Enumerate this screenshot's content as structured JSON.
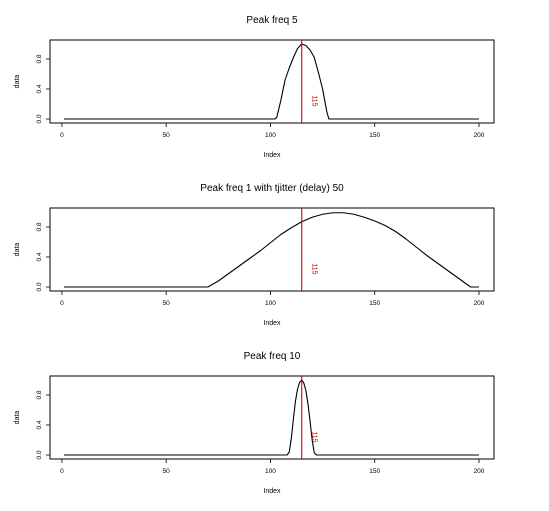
{
  "chart_data": [
    {
      "type": "line",
      "title": "Peak freq 5",
      "xlabel": "Index",
      "ylabel": "data",
      "xlim": [
        1,
        200
      ],
      "ylim": [
        0,
        1
      ],
      "xticks": [
        0,
        50,
        100,
        150,
        200
      ],
      "yticks": [
        0.0,
        0.4,
        0.8
      ],
      "ytick_labels": [
        "0.0",
        "0.4",
        "0.8"
      ],
      "grid": false,
      "series": [
        {
          "color": "#000000",
          "points": [
            [
              1,
              0
            ],
            [
              102,
              0
            ],
            [
              103,
              0.02
            ],
            [
              105,
              0.25
            ],
            [
              107,
              0.52
            ],
            [
              109,
              0.68
            ],
            [
              111,
              0.82
            ],
            [
              113,
              0.94
            ],
            [
              115,
              1.0
            ],
            [
              117,
              0.98
            ],
            [
              119,
              0.92
            ],
            [
              121,
              0.82
            ],
            [
              123,
              0.62
            ],
            [
              125,
              0.4
            ],
            [
              127,
              0.1
            ],
            [
              128,
              0
            ],
            [
              200,
              0
            ]
          ]
        }
      ],
      "vline": {
        "x": 115,
        "label": "115",
        "color": "#d00000"
      }
    },
    {
      "type": "line",
      "title": "Peak freq 1 with tjitter (delay) 50",
      "xlabel": "Index",
      "ylabel": "data",
      "xlim": [
        1,
        200
      ],
      "ylim": [
        0,
        1
      ],
      "xticks": [
        0,
        50,
        100,
        150,
        200
      ],
      "yticks": [
        0.0,
        0.4,
        0.8
      ],
      "ytick_labels": [
        "0.0",
        "0.4",
        "0.8"
      ],
      "grid": false,
      "series": [
        {
          "color": "#000000",
          "points": [
            [
              1,
              0
            ],
            [
              70,
              0
            ],
            [
              75,
              0.08
            ],
            [
              80,
              0.18
            ],
            [
              85,
              0.28
            ],
            [
              90,
              0.38
            ],
            [
              95,
              0.48
            ],
            [
              100,
              0.59
            ],
            [
              105,
              0.7
            ],
            [
              110,
              0.79
            ],
            [
              115,
              0.87
            ],
            [
              120,
              0.93
            ],
            [
              125,
              0.97
            ],
            [
              130,
              0.99
            ],
            [
              135,
              0.99
            ],
            [
              140,
              0.97
            ],
            [
              145,
              0.93
            ],
            [
              150,
              0.88
            ],
            [
              155,
              0.82
            ],
            [
              160,
              0.74
            ],
            [
              165,
              0.64
            ],
            [
              170,
              0.53
            ],
            [
              175,
              0.42
            ],
            [
              180,
              0.32
            ],
            [
              185,
              0.22
            ],
            [
              190,
              0.12
            ],
            [
              195,
              0.02
            ],
            [
              196,
              0
            ],
            [
              200,
              0
            ]
          ]
        }
      ],
      "vline": {
        "x": 115,
        "label": "115",
        "color": "#d00000"
      }
    },
    {
      "type": "line",
      "title": "Peak freq 10",
      "xlabel": "Index",
      "ylabel": "data",
      "xlim": [
        1,
        200
      ],
      "ylim": [
        0,
        1
      ],
      "xticks": [
        0,
        50,
        100,
        150,
        200
      ],
      "yticks": [
        0.0,
        0.4,
        0.8
      ],
      "ytick_labels": [
        "0.0",
        "0.4",
        "0.8"
      ],
      "grid": false,
      "series": [
        {
          "color": "#000000",
          "points": [
            [
              1,
              0
            ],
            [
              108,
              0
            ],
            [
              109,
              0.04
            ],
            [
              110,
              0.22
            ],
            [
              111,
              0.48
            ],
            [
              112,
              0.72
            ],
            [
              113,
              0.88
            ],
            [
              114,
              0.97
            ],
            [
              115,
              1.0
            ],
            [
              116,
              0.96
            ],
            [
              117,
              0.86
            ],
            [
              118,
              0.68
            ],
            [
              119,
              0.45
            ],
            [
              120,
              0.2
            ],
            [
              121,
              0.03
            ],
            [
              122,
              0
            ],
            [
              200,
              0
            ]
          ]
        }
      ],
      "vline": {
        "x": 115,
        "label": "115",
        "color": "#d00000"
      }
    }
  ]
}
